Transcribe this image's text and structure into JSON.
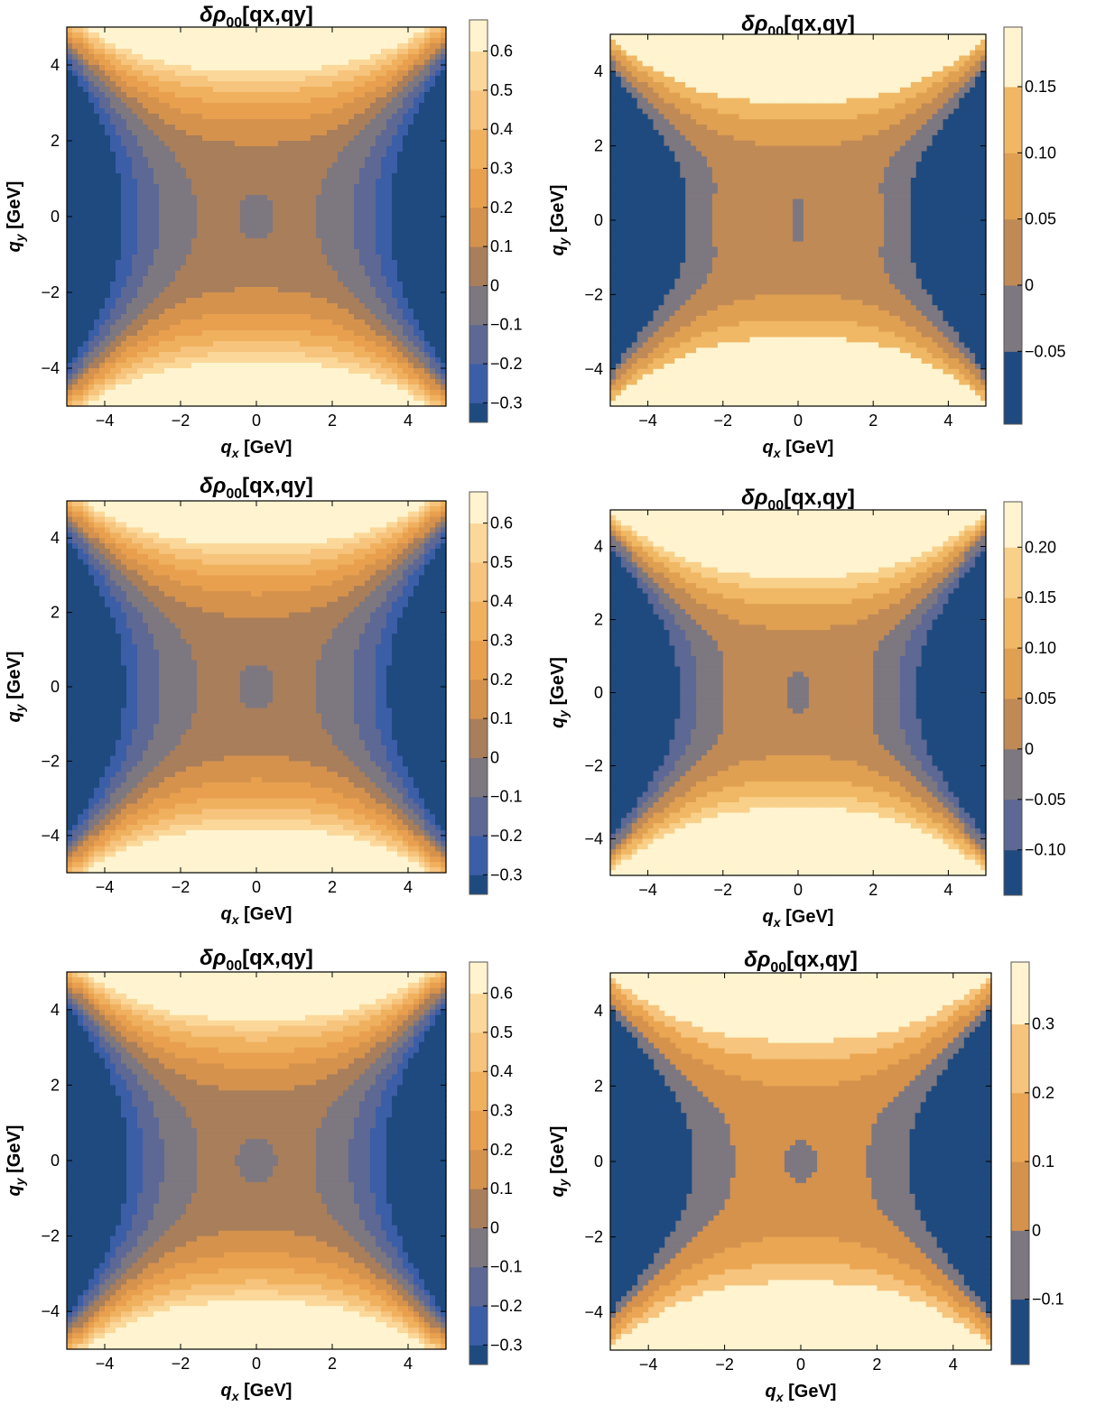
{
  "palette": [
    "#1e4a7f",
    "#3b5ea7",
    "#5d6894",
    "#7d7780",
    "#a87e5b",
    "#d5924d",
    "#e8a04f",
    "#f0b15f",
    "#f6c47d",
    "#fbd899",
    "#fde6b0",
    "#fff4cf"
  ],
  "chart_data": [
    {
      "type": "contour",
      "title_main": "δρ",
      "title_sub": "00",
      "title_rest": "[qx,qy]",
      "xlabel_main": "q",
      "xlabel_sub": "x",
      "xlabel_rest": " [GeV]",
      "ylabel_main": "q",
      "ylabel_sub": "y",
      "ylabel_rest": " [GeV]",
      "xlim": [
        -5,
        5
      ],
      "ylim": [
        -5,
        5
      ],
      "xticks": [
        "−4",
        "−2",
        "0",
        "2",
        "4"
      ],
      "xtick_values": [
        -4,
        -2,
        0,
        2,
        4
      ],
      "yticks": [
        "−4",
        "−2",
        "0",
        "2",
        "4"
      ],
      "ytick_values": [
        -4,
        -2,
        0,
        2,
        4
      ],
      "colorbar": {
        "levels": [
          -0.35,
          -0.3,
          -0.2,
          -0.1,
          0,
          0.1,
          0.2,
          0.3,
          0.4,
          0.5,
          0.6,
          0.68
        ],
        "tick_values": [
          -0.3,
          -0.2,
          -0.1,
          0,
          0.1,
          0.2,
          0.3,
          0.4,
          0.5,
          0.6
        ],
        "tick_labels": [
          "−0.3",
          "−0.2",
          "−0.1",
          "0",
          "0.1",
          "0.2",
          "0.3",
          "0.4",
          "0.5",
          "0.6"
        ],
        "colors": [
          "#1e4a7f",
          "#3b5ea7",
          "#5d6894",
          "#7d7780",
          "#a87e5b",
          "#d5924d",
          "#e8a04f",
          "#f0b15f",
          "#f6c47d",
          "#fbd899",
          "#fff4cf"
        ]
      },
      "field": {
        "a": 0.011,
        "b": 0.0135,
        "c": 0.0011,
        "d": 0.02,
        "e": 0.045,
        "w": 0.45
      }
    },
    {
      "type": "contour",
      "title_main": "δρ",
      "title_sub": "00",
      "title_rest": "[qx,qy]",
      "xlabel_main": "q",
      "xlabel_sub": "x",
      "xlabel_rest": " [GeV]",
      "ylabel_main": "q",
      "ylabel_sub": "y",
      "ylabel_rest": " [GeV]",
      "xlim": [
        -5,
        5
      ],
      "ylim": [
        -5,
        5
      ],
      "xticks": [
        "−4",
        "−2",
        "0",
        "2",
        "4"
      ],
      "xtick_values": [
        -4,
        -2,
        0,
        2,
        4
      ],
      "yticks": [
        "−4",
        "−2",
        "0",
        "2",
        "4"
      ],
      "ytick_values": [
        -4,
        -2,
        0,
        2,
        4
      ],
      "colorbar": {
        "levels": [
          -0.105,
          -0.05,
          0,
          0.05,
          0.1,
          0.15,
          0.195
        ],
        "tick_values": [
          -0.05,
          0,
          0.05,
          0.1,
          0.15
        ],
        "tick_labels": [
          "−0.05",
          "0",
          "0.05",
          "0.10",
          "0.15"
        ],
        "colors": [
          "#1e4a7f",
          "#7d7780",
          "#c08a56",
          "#e0a052",
          "#f0b864",
          "#fff4cf"
        ]
      },
      "field": {
        "a": 0.0036,
        "b": 0.0075,
        "c": 0.0004,
        "d": 0.012,
        "e": 0.04,
        "w": 0.45
      }
    },
    {
      "type": "contour",
      "title_main": "δρ",
      "title_sub": "00",
      "title_rest": "[qx,qy]",
      "xlabel_main": "q",
      "xlabel_sub": "x",
      "xlabel_rest": " [GeV]",
      "ylabel_main": "q",
      "ylabel_sub": "y",
      "ylabel_rest": " [GeV]",
      "xlim": [
        -5,
        5
      ],
      "ylim": [
        -5,
        5
      ],
      "xticks": [
        "−4",
        "−2",
        "0",
        "2",
        "4"
      ],
      "xtick_values": [
        -4,
        -2,
        0,
        2,
        4
      ],
      "yticks": [
        "−4",
        "−2",
        "0",
        "2",
        "4"
      ],
      "ytick_values": [
        -4,
        -2,
        0,
        2,
        4
      ],
      "colorbar": {
        "levels": [
          -0.35,
          -0.3,
          -0.2,
          -0.1,
          0,
          0.1,
          0.2,
          0.3,
          0.4,
          0.5,
          0.6,
          0.68
        ],
        "tick_values": [
          -0.3,
          -0.2,
          -0.1,
          0,
          0.1,
          0.2,
          0.3,
          0.4,
          0.5,
          0.6
        ],
        "tick_labels": [
          "−0.3",
          "−0.2",
          "−0.1",
          "0",
          "0.1",
          "0.2",
          "0.3",
          "0.4",
          "0.5",
          "0.6"
        ],
        "colors": [
          "#1e4a7f",
          "#3b5ea7",
          "#5d6894",
          "#7d7780",
          "#a87e5b",
          "#d5924d",
          "#e8a04f",
          "#f0b15f",
          "#f6c47d",
          "#fbd899",
          "#fff4cf"
        ]
      },
      "field": {
        "a": 0.012,
        "b": 0.0135,
        "c": 0.0011,
        "d": 0.02,
        "e": 0.045,
        "w": 0.45
      }
    },
    {
      "type": "contour",
      "title_main": "δρ",
      "title_sub": "00",
      "title_rest": "[qx,qy]",
      "xlabel_main": "q",
      "xlabel_sub": "x",
      "xlabel_rest": " [GeV]",
      "ylabel_main": "q",
      "ylabel_sub": "y",
      "ylabel_rest": " [GeV]",
      "xlim": [
        -5,
        5
      ],
      "ylim": [
        -5,
        5
      ],
      "xticks": [
        "−4",
        "−2",
        "0",
        "2",
        "4"
      ],
      "xtick_values": [
        -4,
        -2,
        0,
        2,
        4
      ],
      "yticks": [
        "−4",
        "−2",
        "0",
        "2",
        "4"
      ],
      "ytick_values": [
        -4,
        -2,
        0,
        2,
        4
      ],
      "colorbar": {
        "levels": [
          -0.145,
          -0.1,
          -0.05,
          0,
          0.05,
          0.1,
          0.15,
          0.2,
          0.245
        ],
        "tick_values": [
          -0.1,
          -0.05,
          0,
          0.05,
          0.1,
          0.15,
          0.2
        ],
        "tick_labels": [
          "−0.10",
          "−0.05",
          "0",
          "0.05",
          "0.10",
          "0.15",
          "0.20"
        ],
        "colors": [
          "#1e4a7f",
          "#5d6894",
          "#7d7780",
          "#c08a56",
          "#e0a052",
          "#f0b864",
          "#f9d08a",
          "#fff4cf"
        ]
      },
      "field": {
        "a": 0.0058,
        "b": 0.0095,
        "c": 0.0005,
        "d": 0.014,
        "e": 0.04,
        "w": 0.45
      }
    },
    {
      "type": "contour",
      "title_main": "δρ",
      "title_sub": "00",
      "title_rest": "[qx,qy]",
      "xlabel_main": "q",
      "xlabel_sub": "x",
      "xlabel_rest": " [GeV]",
      "ylabel_main": "q",
      "ylabel_sub": "y",
      "ylabel_rest": " [GeV]",
      "xlim": [
        -5,
        5
      ],
      "ylim": [
        -5,
        5
      ],
      "xticks": [
        "−4",
        "−2",
        "0",
        "2",
        "4"
      ],
      "xtick_values": [
        -4,
        -2,
        0,
        2,
        4
      ],
      "yticks": [
        "−4",
        "−2",
        "0",
        "2",
        "4"
      ],
      "ytick_values": [
        -4,
        -2,
        0,
        2,
        4
      ],
      "colorbar": {
        "levels": [
          -0.35,
          -0.3,
          -0.2,
          -0.1,
          0,
          0.1,
          0.2,
          0.3,
          0.4,
          0.5,
          0.6,
          0.68
        ],
        "tick_values": [
          -0.3,
          -0.2,
          -0.1,
          0,
          0.1,
          0.2,
          0.3,
          0.4,
          0.5,
          0.6
        ],
        "tick_labels": [
          "−0.3",
          "−0.2",
          "−0.1",
          "0",
          "0.1",
          "0.2",
          "0.3",
          "0.4",
          "0.5",
          "0.6"
        ],
        "colors": [
          "#1e4a7f",
          "#3b5ea7",
          "#5d6894",
          "#7d7780",
          "#a87e5b",
          "#d5924d",
          "#e8a04f",
          "#f0b15f",
          "#f6c47d",
          "#fbd899",
          "#fff4cf"
        ]
      },
      "field": {
        "a": 0.013,
        "b": 0.0135,
        "c": 0.0012,
        "d": 0.02,
        "e": 0.045,
        "w": 0.45
      }
    },
    {
      "type": "contour",
      "title_main": "δρ",
      "title_sub": "00",
      "title_rest": "[qx,qy]",
      "xlabel_main": "q",
      "xlabel_sub": "x",
      "xlabel_rest": " [GeV]",
      "ylabel_main": "q",
      "ylabel_sub": "y",
      "ylabel_rest": " [GeV]",
      "xlim": [
        -5,
        5
      ],
      "ylim": [
        -5,
        5
      ],
      "xticks": [
        "−4",
        "−2",
        "0",
        "2",
        "4"
      ],
      "xtick_values": [
        -4,
        -2,
        0,
        2,
        4
      ],
      "yticks": [
        "−4",
        "−2",
        "0",
        "2",
        "4"
      ],
      "ytick_values": [
        -4,
        -2,
        0,
        2,
        4
      ],
      "colorbar": {
        "levels": [
          -0.195,
          -0.1,
          0,
          0.1,
          0.2,
          0.3,
          0.39
        ],
        "tick_values": [
          -0.1,
          0,
          0.1,
          0.2,
          0.3
        ],
        "tick_labels": [
          "−0.1",
          "0",
          "0.1",
          "0.2",
          "0.3"
        ],
        "colors": [
          "#1e4a7f",
          "#7d7780",
          "#d5924d",
          "#eaa652",
          "#f6c47d",
          "#fff4cf"
        ]
      },
      "field": {
        "a": 0.0085,
        "b": 0.014,
        "c": 0.0007,
        "d": 0.016,
        "e": 0.04,
        "w": 0.45
      }
    }
  ]
}
